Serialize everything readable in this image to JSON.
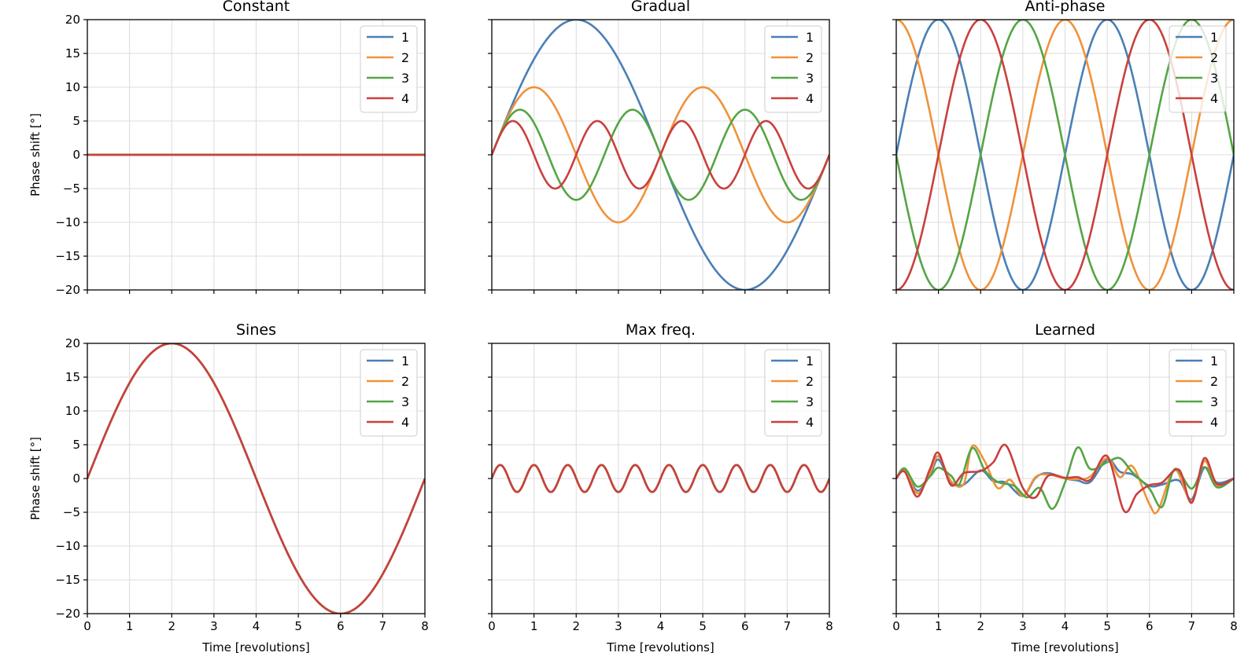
{
  "chart_data": {
    "type": "line",
    "grid": true,
    "x": {
      "label": "Time [revolutions]",
      "range": [
        0,
        8
      ],
      "ticks": [
        0,
        1,
        2,
        3,
        4,
        5,
        6,
        7,
        8
      ]
    },
    "y": {
      "label": "Phase shift [°]",
      "range": [
        -20,
        20
      ],
      "ticks": [
        20,
        15,
        10,
        5,
        0,
        -5,
        -10,
        -15,
        -20
      ]
    },
    "legend": {
      "placement": "top-right",
      "entries": [
        "1",
        "2",
        "3",
        "4"
      ]
    },
    "series_colors": [
      "#4a7fb5",
      "#f0923b",
      "#55a545",
      "#c9403e"
    ],
    "panels": [
      {
        "title": "Constant",
        "series": [
          {
            "name": "1",
            "amplitude": 0,
            "period": 1,
            "phase_deg": 0
          },
          {
            "name": "2",
            "amplitude": 0,
            "period": 1,
            "phase_deg": 0
          },
          {
            "name": "3",
            "amplitude": 0,
            "period": 1,
            "phase_deg": 0
          },
          {
            "name": "4",
            "amplitude": 0,
            "period": 1,
            "phase_deg": 0
          }
        ]
      },
      {
        "title": "Gradual",
        "series": [
          {
            "name": "1",
            "amplitude": 20,
            "period": 8,
            "phase_deg": 0
          },
          {
            "name": "2",
            "amplitude": 10,
            "period": 4,
            "phase_deg": 0
          },
          {
            "name": "3",
            "amplitude": 6.67,
            "period": 2.667,
            "phase_deg": 0
          },
          {
            "name": "4",
            "amplitude": 5,
            "period": 2,
            "phase_deg": 0
          }
        ]
      },
      {
        "title": "Anti-phase",
        "series": [
          {
            "name": "1",
            "amplitude": 20,
            "period": 4,
            "phase_deg": 0
          },
          {
            "name": "2",
            "amplitude": 20,
            "period": 4,
            "phase_deg": 90
          },
          {
            "name": "3",
            "amplitude": 20,
            "period": 4,
            "phase_deg": 180
          },
          {
            "name": "4",
            "amplitude": 20,
            "period": 4,
            "phase_deg": 270
          }
        ]
      },
      {
        "title": "Sines",
        "series": [
          {
            "name": "1",
            "amplitude": 20,
            "period": 8,
            "phase_deg": 0
          },
          {
            "name": "2",
            "amplitude": 20,
            "period": 8,
            "phase_deg": 0
          },
          {
            "name": "3",
            "amplitude": 20,
            "period": 8,
            "phase_deg": 0
          },
          {
            "name": "4",
            "amplitude": 20,
            "period": 8,
            "phase_deg": 0
          }
        ]
      },
      {
        "title": "Max freq.",
        "series": [
          {
            "name": "1",
            "amplitude": 2,
            "period": 0.8,
            "phase_deg": 0
          },
          {
            "name": "2",
            "amplitude": 2,
            "period": 0.8,
            "phase_deg": 0
          },
          {
            "name": "3",
            "amplitude": 2,
            "period": 0.8,
            "phase_deg": 0
          },
          {
            "name": "4",
            "amplitude": 2,
            "period": 0.8,
            "phase_deg": 0
          }
        ]
      },
      {
        "title": "Learned",
        "series": [
          {
            "name": "1",
            "x": [
              0,
              0.2,
              0.5,
              0.8,
              1.0,
              1.3,
              1.6,
              2.0,
              2.3,
              2.6,
              3.0,
              3.3,
              3.6,
              4.0,
              4.3,
              4.6,
              5.0,
              5.3,
              5.6,
              6.0,
              6.3,
              6.7,
              7.0,
              7.3,
              7.6,
              8.0
            ],
            "y": [
              0,
              1.2,
              -1.8,
              0.5,
              2.8,
              -0.6,
              -0.9,
              1.2,
              -0.4,
              -0.6,
              -2.6,
              0.1,
              0.8,
              0,
              -0.3,
              -0.5,
              2.8,
              1.0,
              0.6,
              -1.1,
              -0.9,
              -0.3,
              -3.1,
              1.6,
              -0.6,
              0
            ]
          },
          {
            "name": "2",
            "x": [
              0,
              0.2,
              0.5,
              0.8,
              1.0,
              1.3,
              1.6,
              1.8,
              2.1,
              2.4,
              2.7,
              3.0,
              3.3,
              3.6,
              4.0,
              4.3,
              4.6,
              5.0,
              5.3,
              5.6,
              6.0,
              6.2,
              6.6,
              7.0,
              7.3,
              7.6,
              8.0
            ],
            "y": [
              0,
              1.4,
              -2.2,
              0.8,
              3.3,
              -0.4,
              -0.8,
              4.8,
              2.5,
              -1.4,
              -0.2,
              -2.6,
              0.2,
              0.6,
              0,
              -0.1,
              0.3,
              3.0,
              0.2,
              1.8,
              -3.8,
              -4.8,
              1.3,
              -3.4,
              2.6,
              -1.1,
              0
            ]
          },
          {
            "name": "3",
            "x": [
              0,
              0.2,
              0.5,
              0.8,
              1.0,
              1.3,
              1.5,
              1.8,
              2.1,
              2.4,
              2.8,
              3.1,
              3.4,
              3.7,
              4.0,
              4.3,
              4.6,
              5.0,
              5.3,
              5.6,
              6.0,
              6.3,
              6.6,
              7.0,
              7.3,
              7.6,
              8.0
            ],
            "y": [
              0,
              1.5,
              -1.2,
              0.3,
              1.6,
              0.4,
              -0.8,
              4.5,
              1.2,
              -0.5,
              -1.1,
              -2.8,
              -1.4,
              -4.5,
              -0.6,
              4.6,
              1.4,
              2.4,
              3.0,
              0.9,
              -1.5,
              -4.2,
              1.4,
              -1.5,
              1.7,
              -1.3,
              0
            ]
          },
          {
            "name": "4",
            "x": [
              0,
              0.2,
              0.5,
              0.8,
              1.0,
              1.3,
              1.6,
              2.0,
              2.3,
              2.6,
              3.0,
              3.3,
              3.6,
              4.0,
              4.3,
              4.6,
              5.0,
              5.4,
              5.7,
              6.0,
              6.3,
              6.7,
              7.0,
              7.3,
              7.6,
              8.0
            ],
            "y": [
              0,
              1.0,
              -2.7,
              1.4,
              3.8,
              -1.0,
              0.8,
              1.1,
              2.4,
              4.9,
              -1.4,
              -2.8,
              0.4,
              0.1,
              0.2,
              -0.2,
              3.3,
              -4.8,
              -2.3,
              -1.0,
              -0.6,
              1.3,
              -3.6,
              3.0,
              -0.8,
              0
            ]
          }
        ]
      }
    ]
  }
}
